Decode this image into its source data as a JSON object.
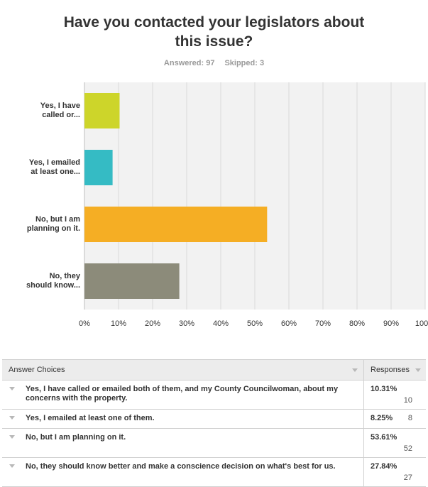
{
  "title_lines": [
    "Have you contacted your legislators about",
    "this issue?"
  ],
  "answered": "Answered: 97",
  "skipped": "Skipped: 3",
  "chart_data": {
    "type": "bar",
    "orientation": "horizontal",
    "categories": [
      "Yes, I have called or...",
      "Yes, I emailed at least one...",
      "No, but I am planning on it.",
      "No, they should know..."
    ],
    "category_lines": [
      [
        "Yes, I have",
        "called or..."
      ],
      [
        "Yes, I emailed",
        "at least one..."
      ],
      [
        "No, but I am",
        "planning on it."
      ],
      [
        "No, they",
        "should know..."
      ]
    ],
    "values": [
      10.31,
      8.25,
      53.61,
      27.84
    ],
    "colors": [
      "#cdd52a",
      "#35bbc4",
      "#f5ae24",
      "#8c8b7a"
    ],
    "xlim": [
      0,
      100
    ],
    "x_ticks": [
      "0%",
      "10%",
      "20%",
      "30%",
      "40%",
      "50%",
      "60%",
      "70%",
      "80%",
      "90%",
      "100%"
    ],
    "grid": true
  },
  "table": {
    "headers": {
      "choice": "Answer Choices",
      "responses": "Responses"
    },
    "rows": [
      {
        "choice": "Yes, I have called or emailed both of them, and my County Councilwoman, about my concerns with the property.",
        "percent": "10.31%",
        "count": "10"
      },
      {
        "choice": "Yes, I emailed at least one of them.",
        "percent": "8.25%",
        "count": "8"
      },
      {
        "choice": "No, but I am planning on it.",
        "percent": "53.61%",
        "count": "52"
      },
      {
        "choice": "No, they should know better and make a conscience decision on what's best for us.",
        "percent": "27.84%",
        "count": "27"
      }
    ]
  }
}
